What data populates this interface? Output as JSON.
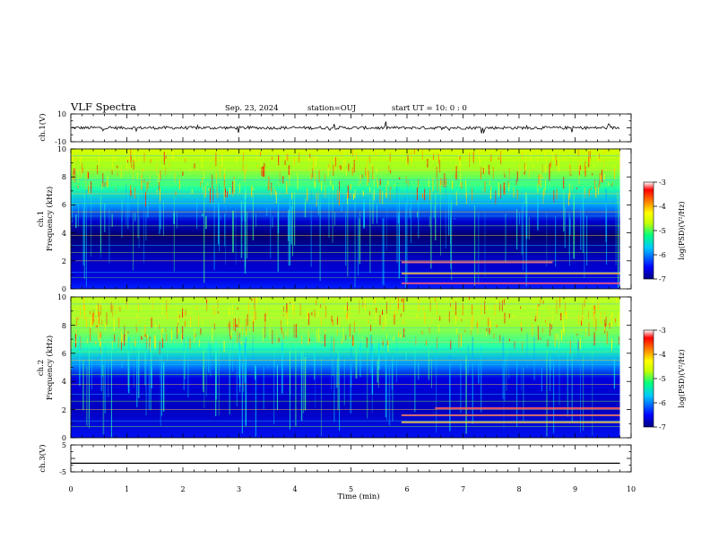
{
  "header": {
    "title": "VLF Spectra",
    "date": "Sep. 23, 2024",
    "station": "station=OUJ",
    "start": "start  UT =   10: 0  : 0"
  },
  "colors": {
    "background": "#ffffff",
    "axes": "#000000",
    "waveform": "#000000"
  },
  "chart_data": [
    {
      "type": "line",
      "panel": "ch1-waveform",
      "ylabel": "ch.1(V)",
      "yticks": [
        "10",
        "-10"
      ],
      "ylim": [
        -10,
        10
      ],
      "baseline": 0,
      "xlim": [
        0,
        10
      ]
    },
    {
      "type": "heatmap",
      "panel": "ch1-spectrogram",
      "ylabel": "ch.1\nFrequency (kHz)",
      "ylabel_lines": [
        "ch.1",
        "Frequency  (kHz)"
      ],
      "yticks": [
        "0",
        "2",
        "4",
        "6",
        "8",
        "10"
      ],
      "ylim": [
        0,
        10
      ],
      "xlim": [
        0,
        10
      ],
      "colorbar": {
        "label": "log(PSD)(V²/Hz)",
        "ticks": [
          "-3",
          "-4",
          "-5",
          "-6",
          "-7"
        ],
        "range": [
          -7,
          -3
        ],
        "colormap": [
          "#000080",
          "#0000ff",
          "#00c8ff",
          "#00ff80",
          "#c8ff00",
          "#ffff00",
          "#ff8000",
          "#ff0000",
          "#ffffff"
        ]
      }
    },
    {
      "type": "heatmap",
      "panel": "ch2-spectrogram",
      "ylabel": "ch.2\nFrequency (kHz)",
      "ylabel_lines": [
        "ch.2",
        "Frequency  (kHz)"
      ],
      "yticks": [
        "0",
        "2",
        "4",
        "6",
        "8",
        "10"
      ],
      "ylim": [
        0,
        10
      ],
      "xlim": [
        0,
        10
      ],
      "colorbar": {
        "label": "log(PSD)(V²/Hz)",
        "ticks": [
          "-3",
          "-4",
          "-5",
          "-6",
          "-7"
        ],
        "range": [
          -7,
          -3
        ],
        "colormap": [
          "#000080",
          "#0000ff",
          "#00c8ff",
          "#00ff80",
          "#c8ff00",
          "#ffff00",
          "#ff8000",
          "#ff0000",
          "#ffffff"
        ]
      }
    },
    {
      "type": "line",
      "panel": "ch3-waveform",
      "ylabel": "ch.3(V)",
      "yticks": [
        "5",
        "-5"
      ],
      "ylim": [
        -5,
        5
      ],
      "baseline": -1.8,
      "xlim": [
        0,
        10
      ]
    }
  ],
  "xaxis": {
    "label": "Time  (min)",
    "ticks": [
      "0",
      "1",
      "2",
      "3",
      "4",
      "5",
      "6",
      "7",
      "8",
      "9",
      "10"
    ],
    "range": [
      0,
      10
    ],
    "data_end": 9.8
  }
}
